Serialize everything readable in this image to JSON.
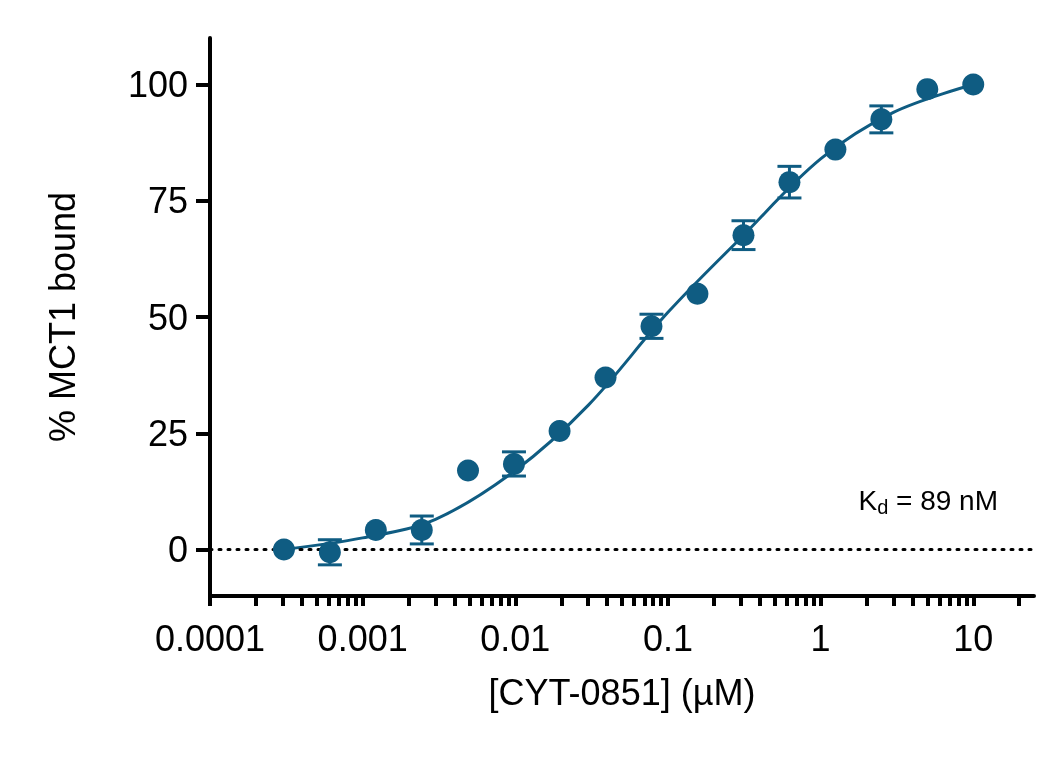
{
  "chart_data": {
    "type": "scatter",
    "xlabel": "[CYT-0851] (µM)",
    "ylabel": "% MCT1 bound",
    "log": "x",
    "xlim": [
      0.0001,
      25
    ],
    "ylim": [
      -10,
      110
    ],
    "xticks": [
      0.0001,
      {
        "value": 0.0002,
        "label": null
      },
      {
        "value": 0.0003,
        "label": null
      },
      {
        "value": 0.0004,
        "label": null
      },
      {
        "value": 0.0005,
        "label": null
      },
      {
        "value": 0.0006,
        "label": null
      },
      {
        "value": 0.0007,
        "label": null
      },
      {
        "value": 0.0008,
        "label": null
      },
      {
        "value": 0.0009,
        "label": null
      },
      0.001,
      {
        "value": 0.002,
        "label": null
      },
      {
        "value": 0.003,
        "label": null
      },
      {
        "value": 0.004,
        "label": null
      },
      {
        "value": 0.005,
        "label": null
      },
      {
        "value": 0.006,
        "label": null
      },
      {
        "value": 0.007,
        "label": null
      },
      {
        "value": 0.008,
        "label": null
      },
      {
        "value": 0.009,
        "label": null
      },
      0.01,
      {
        "value": 0.02,
        "label": null
      },
      {
        "value": 0.03,
        "label": null
      },
      {
        "value": 0.04,
        "label": null
      },
      {
        "value": 0.05,
        "label": null
      },
      {
        "value": 0.06,
        "label": null
      },
      {
        "value": 0.07,
        "label": null
      },
      {
        "value": 0.08,
        "label": null
      },
      {
        "value": 0.09,
        "label": null
      },
      0.1,
      {
        "value": 0.2,
        "label": null
      },
      {
        "value": 0.3,
        "label": null
      },
      {
        "value": 0.4,
        "label": null
      },
      {
        "value": 0.5,
        "label": null
      },
      {
        "value": 0.6,
        "label": null
      },
      {
        "value": 0.7,
        "label": null
      },
      {
        "value": 0.8,
        "label": null
      },
      {
        "value": 0.9,
        "label": null
      },
      1,
      {
        "value": 2,
        "label": null
      },
      {
        "value": 3,
        "label": null
      },
      {
        "value": 4,
        "label": null
      },
      {
        "value": 5,
        "label": null
      },
      {
        "value": 6,
        "label": null
      },
      {
        "value": 7,
        "label": null
      },
      {
        "value": 8,
        "label": null
      },
      {
        "value": 9,
        "label": null
      },
      10,
      {
        "value": 20,
        "label": null
      }
    ],
    "yticks": [
      0,
      25,
      50,
      75,
      100
    ],
    "grid": false,
    "series": [
      {
        "color": "#0f5c82",
        "marker": "circle",
        "x": [
          0.000305,
          0.00061,
          0.00122,
          0.00244,
          0.0049,
          0.0098,
          0.0195,
          0.039,
          0.078,
          0.156,
          0.3125,
          0.625,
          1.25,
          2.5,
          5,
          10
        ],
        "values": [
          0,
          -0.6,
          4.2,
          4.2,
          17,
          18.4,
          25.5,
          37,
          48,
          55,
          67.6,
          79,
          86,
          92.5,
          99,
          100
        ],
        "errors": [
          null,
          2.7,
          null,
          3,
          null,
          2.6,
          null,
          null,
          2.6,
          null,
          3.1,
          3.4,
          null,
          2.9,
          null,
          null
        ]
      },
      {
        "type": "line",
        "color": "#0f5c82",
        "marker": "none",
        "x": [
          0.000305,
          0.001,
          0.003,
          0.01,
          0.03,
          0.1,
          0.3,
          1,
          3,
          10
        ],
        "values": [
          0,
          2.5,
          6.5,
          17,
          31,
          51,
          67,
          84,
          94,
          100
        ]
      }
    ],
    "ref_lines": [
      {
        "axis": "y",
        "value": 0,
        "label": null,
        "color": "#000000",
        "line_style": "dotted"
      }
    ],
    "annotations": [
      "K$_{d}$ = 89 nM"
    ]
  }
}
